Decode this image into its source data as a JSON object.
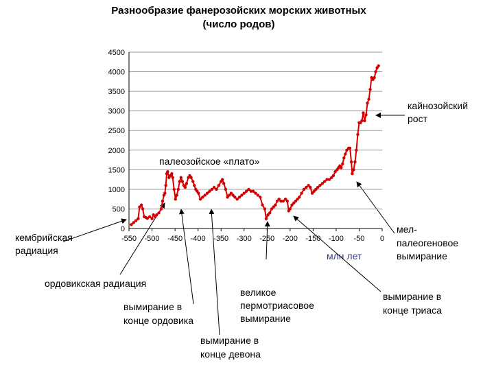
{
  "chart_data": {
    "type": "line",
    "title": "Разнообразие фанерозойских морских животных",
    "subtitle": "(число родов)",
    "xlabel": "млн лет",
    "color": "#d40000",
    "grid": true,
    "xlim": [
      -550,
      0
    ],
    "xticks": [
      -550,
      -500,
      -450,
      -400,
      -350,
      -300,
      -250,
      -200,
      -150,
      -100,
      -50,
      0
    ],
    "ylim": [
      0,
      4500
    ],
    "yticks": [
      0,
      500,
      1000,
      1500,
      2000,
      2500,
      3000,
      3500,
      4000,
      4500
    ],
    "x": [
      -545,
      -540,
      -535,
      -530,
      -527,
      -523,
      -520,
      -517,
      -513,
      -510,
      -505,
      -500,
      -497,
      -493,
      -490,
      -485,
      -480,
      -477,
      -474,
      -472,
      -470,
      -468,
      -466,
      -463,
      -460,
      -457,
      -455,
      -452,
      -449,
      -446,
      -443,
      -440,
      -437,
      -434,
      -431,
      -428,
      -425,
      -421,
      -418,
      -415,
      -411,
      -408,
      -405,
      -402,
      -399,
      -395,
      -390,
      -385,
      -380,
      -375,
      -370,
      -365,
      -360,
      -355,
      -350,
      -347,
      -344,
      -340,
      -336,
      -332,
      -328,
      -324,
      -320,
      -315,
      -310,
      -305,
      -300,
      -295,
      -290,
      -285,
      -280,
      -275,
      -270,
      -265,
      -260,
      -255,
      -252,
      -248,
      -244,
      -240,
      -236,
      -232,
      -228,
      -224,
      -220,
      -215,
      -210,
      -206,
      -203,
      -200,
      -196,
      -192,
      -188,
      -184,
      -180,
      -175,
      -170,
      -165,
      -160,
      -156,
      -152,
      -148,
      -144,
      -140,
      -135,
      -130,
      -125,
      -120,
      -115,
      -110,
      -106,
      -102,
      -98,
      -95,
      -92,
      -89,
      -86,
      -83,
      -80,
      -77,
      -73,
      -70,
      -67,
      -65,
      -62,
      -59,
      -56,
      -53,
      -50,
      -47,
      -44,
      -41,
      -38,
      -35,
      -32,
      -29,
      -26,
      -23,
      -20,
      -17,
      -14,
      -11,
      -8
    ],
    "values": [
      100,
      150,
      200,
      250,
      550,
      600,
      500,
      300,
      280,
      260,
      300,
      250,
      350,
      300,
      350,
      400,
      500,
      700,
      850,
      900,
      1100,
      1400,
      1450,
      1300,
      1350,
      1400,
      1300,
      1000,
      750,
      850,
      1000,
      1200,
      1300,
      1200,
      1100,
      1050,
      1150,
      1300,
      1350,
      1300,
      1200,
      1100,
      1000,
      950,
      900,
      750,
      800,
      850,
      900,
      950,
      1000,
      1050,
      1000,
      1100,
      1200,
      1250,
      1150,
      1000,
      800,
      850,
      900,
      850,
      800,
      750,
      800,
      850,
      900,
      950,
      1000,
      950,
      950,
      900,
      850,
      800,
      600,
      500,
      250,
      350,
      400,
      500,
      550,
      600,
      700,
      750,
      700,
      700,
      750,
      700,
      450,
      500,
      600,
      650,
      700,
      750,
      800,
      900,
      1000,
      1050,
      1100,
      1050,
      900,
      950,
      1000,
      1050,
      1100,
      1150,
      1200,
      1250,
      1250,
      1300,
      1350,
      1450,
      1500,
      1550,
      1600,
      1550,
      1650,
      1800,
      1900,
      2000,
      2050,
      2050,
      1700,
      1400,
      1500,
      1700,
      2000,
      2400,
      2700,
      2700,
      2750,
      2950,
      2750,
      2900,
      3200,
      3300,
      3550,
      3850,
      3800,
      3850,
      4000,
      4100,
      4150
    ],
    "annotations": [
      [
        "палеозойское «плато»"
      ],
      [
        "кембрийская",
        "радиация"
      ],
      [
        "ордовикская радиация"
      ],
      [
        "вымирание в",
        "конце ордовика"
      ],
      [
        "вымирание в",
        "конце девона"
      ],
      [
        "великое",
        "пермотриасовое",
        "вымирание"
      ],
      [
        "вымирание в",
        "конце триаса"
      ],
      [
        "мел-",
        "палеогеновое",
        "вымирание"
      ],
      [
        "кайнозойский",
        "рост"
      ]
    ]
  }
}
